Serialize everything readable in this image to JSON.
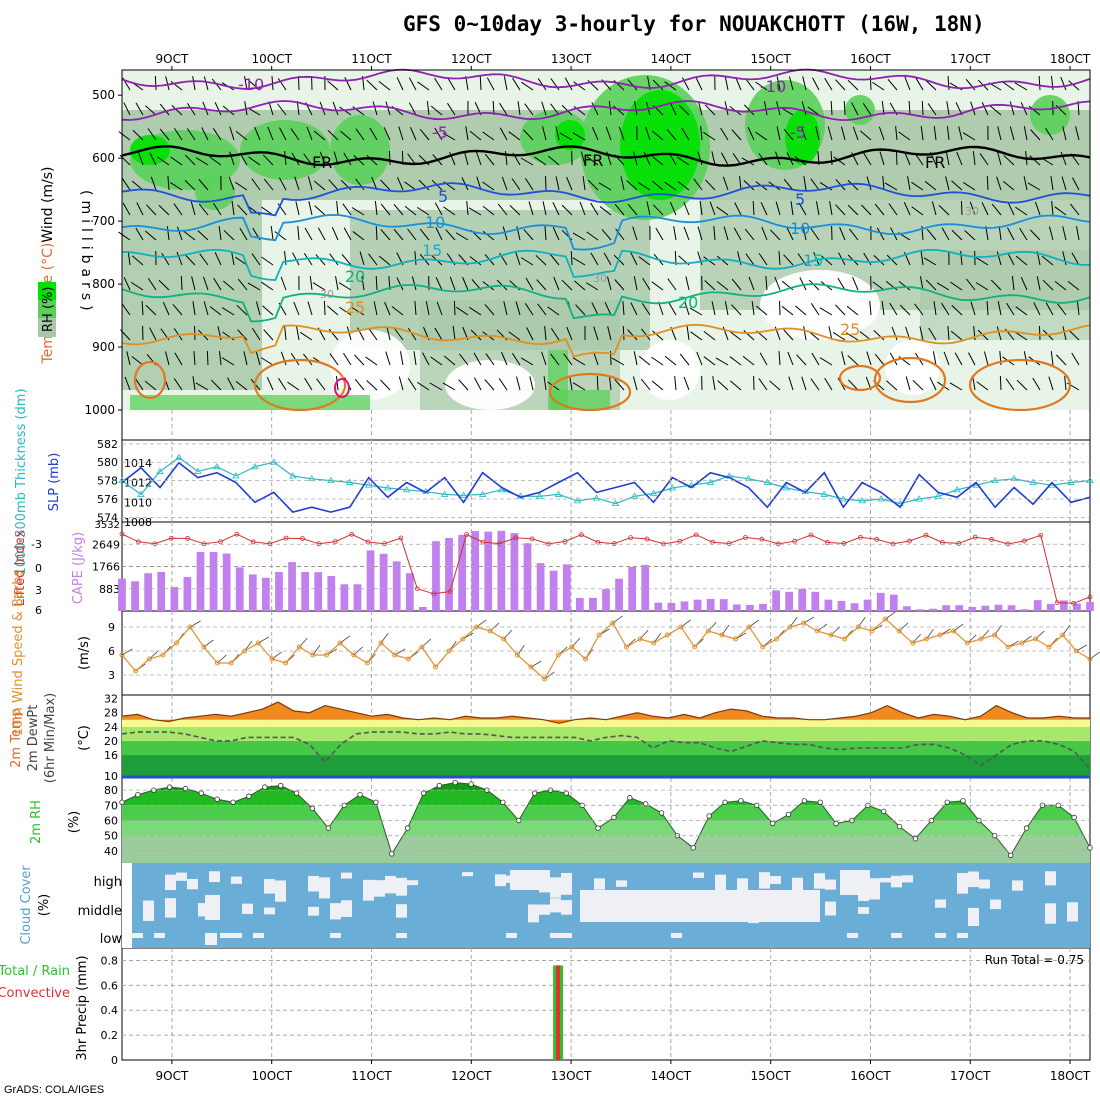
{
  "title": "GFS 0~10day 3-hourly for NOUAKCHOTT (16W, 18N)",
  "footer": "GrADS: COLA/IGES",
  "time_axis": {
    "labels": [
      "9OCT",
      "10OCT",
      "11OCT",
      "12OCT",
      "13OCT",
      "14OCT",
      "15OCT",
      "16OCT",
      "17OCT",
      "18OCT"
    ]
  },
  "colors": {
    "grid": "#aaaaaa",
    "rh_light": "#e8f4e8",
    "rh_mid": "#a8c8a8",
    "rh_green": "#5ad05a",
    "rh_bright": "#00e000",
    "thickness": "#2ab8c8",
    "slp": "#1e3cd0",
    "li": "#d03030",
    "cape": "#c080f0",
    "wind": "#e09030",
    "temp_fill": "#f08a1e",
    "rh2m": "#30c030",
    "cloud_blue": "#6aaed8",
    "cloud_white": "#eef0f5",
    "precip_green": "#30c030",
    "precip_red": "#e03030"
  },
  "chart_data": [
    {
      "id": "upper",
      "type": "heatmap",
      "ylabel_parts": [
        "Wind (m/s)",
        "Temperature (°C)",
        "RH (%)"
      ],
      "ylabel2": "(millibars)",
      "y_ticks": [
        500,
        600,
        700,
        800,
        900,
        1000
      ],
      "y_range": [
        460,
        1000
      ],
      "inline_labels": [
        "-10",
        "-5",
        "FR",
        "5",
        "10",
        "15",
        "20",
        "25",
        "30"
      ],
      "isotherms": [
        {
          "label": "-10",
          "base": 475
        },
        {
          "label": "-5",
          "base": 525
        },
        {
          "label": "FR",
          "base": 597
        },
        {
          "label": "5",
          "base": 655
        },
        {
          "label": "10",
          "base": 705
        },
        {
          "label": "15",
          "base": 760
        },
        {
          "label": "20",
          "base": 815
        },
        {
          "label": "25",
          "base": 880
        }
      ]
    },
    {
      "id": "thick_slp",
      "type": "line",
      "ylabel_left": "1000-500mb Thickness (dm)",
      "ylabel_right": "SLP (mb)",
      "left_ticks": [
        "582",
        "580",
        "578",
        "576",
        "574"
      ],
      "right_ticks": [
        "1014",
        "1012",
        "1010",
        "1008"
      ],
      "series": [
        {
          "name": "Thickness",
          "values": [
            578,
            576.5,
            579,
            580.5,
            579,
            579.5,
            578.5,
            579.5,
            580,
            578.5,
            578.2,
            578,
            577.8,
            577.5,
            577.2,
            577,
            576.8,
            576.5,
            576.4,
            576.5,
            577,
            576.3,
            576.3,
            576.5,
            575.8,
            576.1,
            575.5,
            576.3,
            576.6,
            577.2,
            577.5,
            577.8,
            578.5,
            578.2,
            577.8,
            577.2,
            576.8,
            576.5,
            576,
            575.8,
            576,
            575.5,
            576,
            576.3,
            577,
            577.5,
            578,
            578.2,
            577.8,
            577.5,
            577.8,
            578
          ]
        },
        {
          "name": "SLP",
          "values": [
            1012,
            1013.5,
            1011.5,
            1014,
            1012.5,
            1013,
            1012,
            1010,
            1011,
            1009,
            1009.5,
            1009,
            1009.5,
            1012.5,
            1010.5,
            1012,
            1011,
            1012.5,
            1010,
            1013,
            1011.5,
            1010.5,
            1011,
            1012,
            1013,
            1011,
            1011.5,
            1012,
            1010,
            1012.5,
            1011.5,
            1013,
            1012.5,
            1011.5,
            1009.5,
            1012,
            1011,
            1013,
            1009.5,
            1012,
            1011,
            1009.5,
            1012.8,
            1011,
            1010.5,
            1012,
            1009.5,
            1011.5,
            1009.8,
            1012,
            1010,
            1010.5
          ]
        }
      ]
    },
    {
      "id": "cape_li",
      "type": "bar",
      "ylabel_left": "Lifted Index",
      "ylabel_right": "CAPE (J/kg)",
      "li_ticks": [
        "-3",
        "0",
        "3",
        "6"
      ],
      "cape_ticks": [
        "2649",
        "1766",
        "883"
      ],
      "cape_top": "3532",
      "cape_values": [
        1280,
        1180,
        1500,
        1550,
        950,
        1350,
        2340,
        2340,
        2280,
        1730,
        1450,
        1320,
        1550,
        1940,
        1550,
        1540,
        1390,
        1060,
        1060,
        2400,
        2270,
        1970,
        1500,
        160,
        2770,
        2900,
        3020,
        3170,
        3150,
        3180,
        3090,
        2690,
        1900,
        1600,
        1850,
        520,
        520,
        870,
        1280,
        1750,
        1830,
        330,
        320,
        380,
        450,
        480,
        470,
        260,
        240,
        280,
        820,
        760,
        880,
        760,
        450,
        400,
        310,
        450,
        720,
        650,
        190,
        70,
        90,
        230,
        230,
        160,
        210,
        250,
        230,
        70,
        430,
        280,
        420,
        300,
        360
      ]
    },
    {
      "id": "wind10m",
      "type": "line",
      "ylabel_left": "10m Wind Speed & Barbs",
      "ylabel_right": "(m/s)",
      "y_ticks": [
        "9",
        "6",
        "3"
      ],
      "series": [
        {
          "name": "Wind speed",
          "values": [
            5.5,
            3.5,
            5,
            5.5,
            7,
            9,
            6.5,
            4.5,
            4.5,
            6,
            7,
            5,
            4.5,
            6.5,
            5.5,
            5.5,
            7,
            5.5,
            4.5,
            7,
            5.5,
            5,
            6.5,
            4,
            6,
            7.5,
            9,
            8.5,
            7.5,
            5.5,
            4,
            2.5,
            5.5,
            6.5,
            5,
            8,
            9.5,
            6.5,
            7.5,
            7,
            8,
            9,
            6.5,
            8.5,
            8,
            7.5,
            9,
            6.5,
            7.5,
            9,
            9.5,
            8.5,
            8,
            7.5,
            9,
            8.5,
            10,
            8.5,
            7,
            7.5,
            8,
            8.5,
            7,
            7.5,
            8,
            6.5,
            7,
            7.5,
            6.5,
            8,
            6,
            5
          ]
        }
      ]
    },
    {
      "id": "temp2m",
      "type": "area",
      "ylabel_left": "2m Temp 2m DewPt (6hr Min/Max)",
      "ylabel_right": "(°C)",
      "y_ticks": [
        "32",
        "28",
        "24",
        "20",
        "16",
        "10"
      ],
      "temp_values": [
        27,
        27.5,
        26,
        25.5,
        26.5,
        27,
        27.5,
        27,
        28,
        29,
        31,
        28.5,
        28,
        30,
        29,
        28,
        27,
        27.5,
        26.5,
        26,
        26.5,
        26,
        27,
        26.5,
        26.5,
        27,
        26.5,
        26,
        25,
        26,
        26.5,
        26,
        27,
        28,
        27,
        26.5,
        27.5,
        26.5,
        28,
        29,
        28.5,
        27,
        26.5,
        26.5,
        26,
        26,
        26.5,
        27,
        28,
        30,
        28,
        26.5,
        27.5,
        27,
        26,
        27,
        30,
        28,
        26.5,
        26.5,
        27,
        26.5,
        26.5
      ],
      "dewpt_values": [
        22,
        22.5,
        22.5,
        22.5,
        22,
        21,
        20,
        20,
        21,
        21,
        21,
        21,
        19,
        14,
        19,
        22,
        22.5,
        22.5,
        22.5,
        22,
        22,
        22.5,
        22,
        22,
        21.5,
        21,
        21,
        21,
        21,
        21,
        20,
        21,
        21.5,
        21,
        18,
        20,
        19.5,
        19.5,
        18,
        17,
        18.5,
        20,
        19.5,
        19,
        19,
        18,
        17.5,
        18,
        18,
        18,
        18,
        19,
        19,
        18,
        16,
        13,
        16,
        19,
        20,
        20,
        19,
        17,
        12
      ]
    },
    {
      "id": "rh2m",
      "type": "area",
      "ylabel_left": "2m RH",
      "ylabel_right": "(%)",
      "y_ticks": [
        "80",
        "70",
        "60",
        "50",
        "40"
      ],
      "values": [
        72,
        77,
        80,
        82,
        81,
        78,
        74,
        72,
        76,
        82,
        83,
        78,
        68,
        55,
        70,
        77,
        72,
        38,
        55,
        78,
        83,
        85,
        84,
        80,
        72,
        60,
        78,
        80,
        78,
        70,
        55,
        62,
        75,
        71,
        65,
        50,
        42,
        63,
        72,
        73,
        70,
        58,
        64,
        73,
        72,
        58,
        60,
        70,
        66,
        56,
        48,
        60,
        72,
        73,
        60,
        50,
        37,
        55,
        70,
        70,
        62,
        42
      ]
    },
    {
      "id": "cloud",
      "type": "heatmap",
      "ylabel_left": "Cloud Cover",
      "ylabel_right": "(%)",
      "row_labels": [
        "high",
        "middle",
        "low"
      ]
    },
    {
      "id": "precip",
      "type": "bar",
      "ylabel_left": "Total / Rain Convective",
      "ylabel_right": "3hr Precip (mm)",
      "run_total": "Run Total = 0.75",
      "y_ticks": [
        "0.8",
        "0.6",
        "0.4",
        "0.2",
        "0"
      ],
      "y_range": [
        0,
        0.9
      ],
      "bars": [
        {
          "day": 12.87,
          "total": 0.76,
          "convective": 0.76
        }
      ]
    }
  ]
}
